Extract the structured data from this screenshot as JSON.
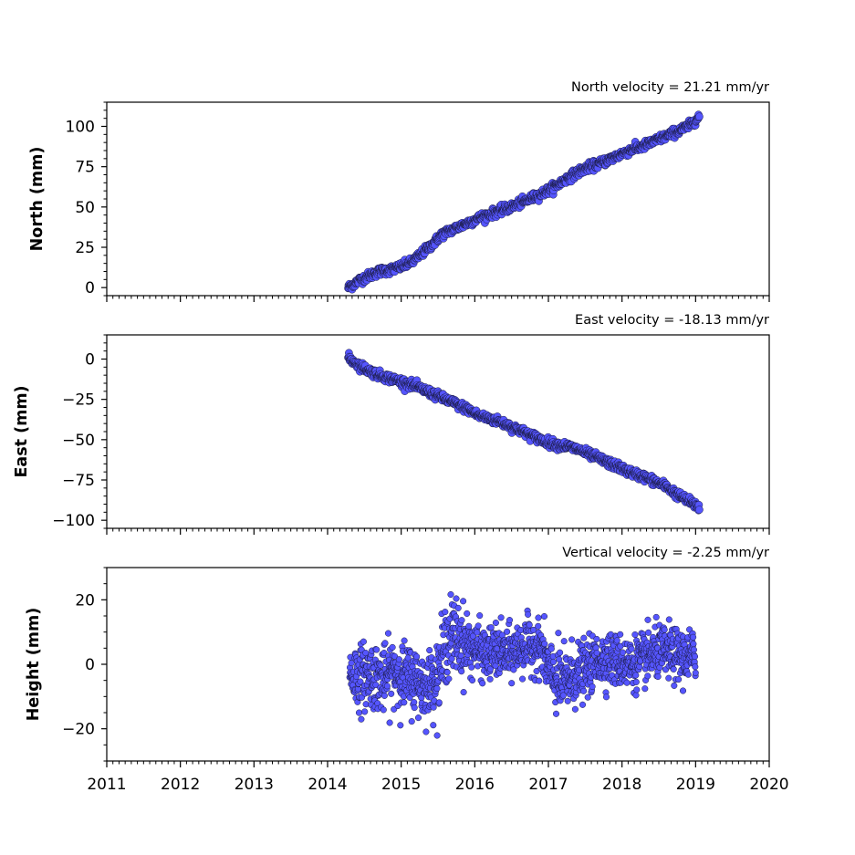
{
  "chart_data": [
    {
      "type": "scatter",
      "title": "North velocity = 21.21 mm/yr",
      "ylabel": "North (mm)",
      "xlabel": "",
      "xlim": [
        2011,
        2020
      ],
      "ylim": [
        -5,
        115
      ],
      "yticks": [
        0,
        25,
        50,
        75,
        100
      ],
      "xtick_labels_visible": false,
      "series": [
        {
          "marker_color": "#5555ff",
          "x": [
            2014.28,
            2014.35,
            2014.45,
            2014.55,
            2014.7,
            2014.85,
            2015.0,
            2015.15,
            2015.3,
            2015.45,
            2015.55,
            2015.65,
            2015.8,
            2015.95,
            2016.1,
            2016.3,
            2016.5,
            2016.7,
            2016.9,
            2017.1,
            2017.3,
            2017.5,
            2017.7,
            2017.9,
            2018.1,
            2018.3,
            2018.5,
            2018.7,
            2018.9,
            2019.05
          ],
          "y": [
            0,
            2,
            5,
            7,
            10,
            11,
            13,
            16,
            22,
            28,
            33,
            35,
            38,
            41,
            44,
            47,
            50,
            54,
            58,
            63,
            69,
            74,
            77,
            81,
            85,
            88,
            92,
            96,
            100,
            106
          ]
        }
      ]
    },
    {
      "type": "scatter",
      "title": "East velocity = -18.13 mm/yr",
      "ylabel": "East (mm)",
      "xlabel": "",
      "xlim": [
        2011,
        2020
      ],
      "ylim": [
        -105,
        15
      ],
      "yticks": [
        0,
        -25,
        -50,
        -75,
        -100
      ],
      "xtick_labels_visible": false,
      "series": [
        {
          "marker_color": "#5555ff",
          "x": [
            2014.28,
            2014.4,
            2014.55,
            2014.7,
            2014.85,
            2015.0,
            2015.15,
            2015.3,
            2015.45,
            2015.6,
            2015.75,
            2015.9,
            2016.05,
            2016.2,
            2016.35,
            2016.5,
            2016.65,
            2016.8,
            2016.95,
            2017.1,
            2017.25,
            2017.4,
            2017.55,
            2017.7,
            2017.85,
            2018.0,
            2018.15,
            2018.3,
            2018.45,
            2018.6,
            2018.75,
            2018.9,
            2019.05
          ],
          "y": [
            1,
            -3,
            -7,
            -10,
            -12,
            -14,
            -16,
            -19,
            -22,
            -25,
            -28,
            -31,
            -35,
            -37,
            -39,
            -42,
            -45,
            -48,
            -51,
            -53,
            -54,
            -56,
            -59,
            -62,
            -65,
            -68,
            -71,
            -73,
            -76,
            -79,
            -84,
            -88,
            -92
          ]
        }
      ]
    },
    {
      "type": "scatter",
      "title": "Vertical velocity = -2.25 mm/yr",
      "ylabel": "Height (mm)",
      "xlabel": "",
      "xlim": [
        2011,
        2020
      ],
      "ylim": [
        -30,
        30
      ],
      "yticks": [
        20,
        0,
        -20
      ],
      "xticks": [
        "2011",
        "2012",
        "2013",
        "2014",
        "2015",
        "2016",
        "2017",
        "2018",
        "2019",
        "2020"
      ],
      "xtick_labels_visible": true,
      "series": [
        {
          "marker_color": "#5555ff",
          "x": [
            2014.3,
            2014.45,
            2014.6,
            2014.75,
            2014.9,
            2015.05,
            2015.2,
            2015.35,
            2015.5,
            2015.62,
            2015.75,
            2015.88,
            2016.0,
            2016.15,
            2016.3,
            2016.45,
            2016.6,
            2016.75,
            2016.9,
            2017.05,
            2017.2,
            2017.35,
            2017.5,
            2017.65,
            2017.8,
            2017.95,
            2018.1,
            2018.25,
            2018.4,
            2018.55,
            2018.7,
            2018.85,
            2019.0
          ],
          "y": [
            -3,
            -4,
            -3,
            -5,
            -2,
            -4,
            -5,
            -7,
            -3,
            8,
            9,
            6,
            5,
            3,
            4,
            3,
            5,
            6,
            5,
            -4,
            -6,
            -3,
            -2,
            1,
            2,
            1,
            0,
            1,
            3,
            4,
            3,
            2,
            3
          ],
          "scatter_sd": [
            5,
            5,
            5,
            5,
            5,
            5,
            5,
            5,
            5,
            6,
            6,
            5,
            4,
            4,
            4,
            4,
            4,
            4,
            4,
            5,
            5,
            5,
            4,
            4,
            4,
            4,
            4,
            4,
            4,
            4,
            4,
            4,
            4
          ]
        }
      ]
    }
  ]
}
